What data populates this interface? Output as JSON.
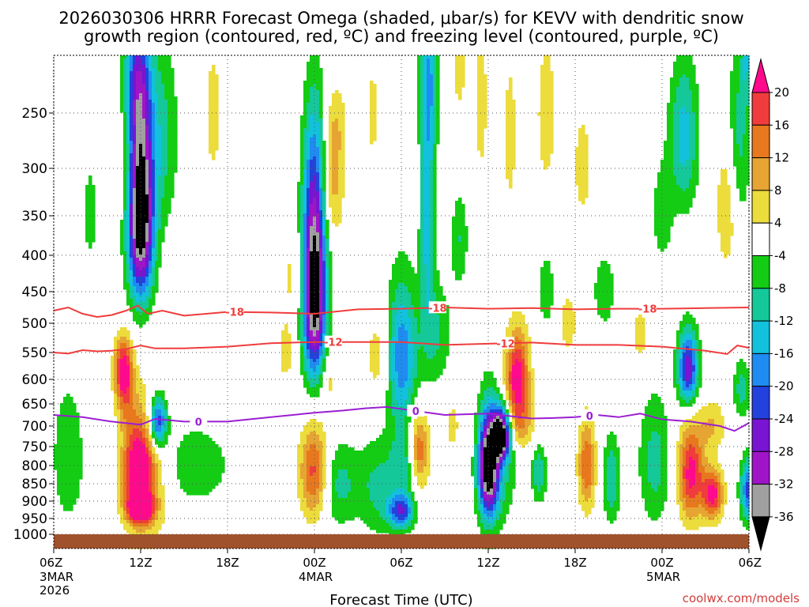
{
  "chart_data": {
    "type": "heatmap",
    "title_lines": [
      "2026030306 HRRR Forecast Omega (shaded, μbar/s) for KEVV with dendritic snow",
      "growth region (contoured, red, ºC) and freezing level (contoured, purple, ºC)"
    ],
    "xlabel": "Forecast Time (UTC)",
    "ylabel": "",
    "x_range_hours": [
      0,
      48
    ],
    "y_range_hpa": [
      1010,
      200
    ],
    "y_ticks": [
      {
        "p": 250,
        "label": "250"
      },
      {
        "p": 300,
        "label": "300"
      },
      {
        "p": 350,
        "label": "350"
      },
      {
        "p": 400,
        "label": "400"
      },
      {
        "p": 450,
        "label": "450"
      },
      {
        "p": 500,
        "label": "500"
      },
      {
        "p": 550,
        "label": "550"
      },
      {
        "p": 600,
        "label": "600"
      },
      {
        "p": 650,
        "label": "650"
      },
      {
        "p": 700,
        "label": "700"
      },
      {
        "p": 750,
        "label": "750"
      },
      {
        "p": 800,
        "label": "800"
      },
      {
        "p": 850,
        "label": "850"
      },
      {
        "p": 900,
        "label": "900"
      },
      {
        "p": 950,
        "label": "950"
      },
      {
        "p": 1000,
        "label": "1000"
      }
    ],
    "x_ticks": [
      {
        "h": 0,
        "label": "06Z",
        "sub": [
          "3MAR",
          "2026"
        ]
      },
      {
        "h": 6,
        "label": "12Z",
        "sub": []
      },
      {
        "h": 12,
        "label": "18Z",
        "sub": []
      },
      {
        "h": 18,
        "label": "00Z",
        "sub": [
          "4MAR"
        ]
      },
      {
        "h": 24,
        "label": "06Z",
        "sub": []
      },
      {
        "h": 30,
        "label": "12Z",
        "sub": []
      },
      {
        "h": 36,
        "label": "18Z",
        "sub": []
      },
      {
        "h": 42,
        "label": "00Z",
        "sub": [
          "5MAR"
        ]
      },
      {
        "h": 48,
        "label": "06Z",
        "sub": []
      }
    ],
    "grid": true,
    "colorbar": {
      "ticks": [
        "20",
        "16",
        "12",
        "8",
        "4",
        "-4",
        "-8",
        "-12",
        "-16",
        "-20",
        "-24",
        "-28",
        "-32",
        "-36"
      ],
      "bins": [
        {
          "min": 20,
          "max": 24,
          "color": "#ff0a8c"
        },
        {
          "min": 16,
          "max": 20,
          "color": "#f03c3c"
        },
        {
          "min": 12,
          "max": 16,
          "color": "#e8781e"
        },
        {
          "min": 8,
          "max": 12,
          "color": "#e6a532"
        },
        {
          "min": 4,
          "max": 8,
          "color": "#ecdc3c"
        },
        {
          "min": -4,
          "max": 4,
          "color": "#ffffff"
        },
        {
          "min": -8,
          "max": -4,
          "color": "#14cc14"
        },
        {
          "min": -12,
          "max": -8,
          "color": "#14c89a"
        },
        {
          "min": -16,
          "max": -12,
          "color": "#12c1dc"
        },
        {
          "min": -20,
          "max": -16,
          "color": "#1e8cf0"
        },
        {
          "min": -24,
          "max": -20,
          "color": "#2341dc"
        },
        {
          "min": -28,
          "max": -24,
          "color": "#7814d2"
        },
        {
          "min": -32,
          "max": -28,
          "color": "#a014c8"
        },
        {
          "min": -36,
          "max": -32,
          "color": "#a0a0a0"
        },
        {
          "min": -40,
          "max": -36,
          "color": "#000000"
        }
      ]
    },
    "omega_blobs": [
      {
        "h": 6.0,
        "p": 350,
        "wh": 0.9,
        "wp": 105,
        "v": -44
      },
      {
        "h": 5.8,
        "p": 220,
        "wh": 0.9,
        "wp": 60,
        "v": -20
      },
      {
        "h": 5.0,
        "p": 300,
        "wh": 0.6,
        "wp": 60,
        "v": 4
      },
      {
        "h": 7.5,
        "p": 270,
        "wh": 1.1,
        "wp": 90,
        "v": -9
      },
      {
        "h": 2.5,
        "p": 350,
        "wh": 0.5,
        "wp": 55,
        "v": -7
      },
      {
        "h": 1.0,
        "p": 780,
        "wh": 1.1,
        "wp": 180,
        "v": -8
      },
      {
        "h": 5.8,
        "p": 820,
        "wh": 1.0,
        "wp": 120,
        "v": 24
      },
      {
        "h": 6.0,
        "p": 920,
        "wh": 0.9,
        "wp": 40,
        "v": 22
      },
      {
        "h": 4.8,
        "p": 580,
        "wh": 0.6,
        "wp": 60,
        "v": 20
      },
      {
        "h": 6.5,
        "p": 820,
        "wh": 1.6,
        "wp": 200,
        "v": 10
      },
      {
        "h": 7.2,
        "p": 690,
        "wh": 0.6,
        "wp": 60,
        "v": -26
      },
      {
        "h": 9.5,
        "p": 800,
        "wh": 3.0,
        "wp": 120,
        "v": -7
      },
      {
        "h": 11.0,
        "p": 250,
        "wh": 0.8,
        "wp": 90,
        "v": 5
      },
      {
        "h": 5.0,
        "p": 640,
        "wh": 0.7,
        "wp": 80,
        "v": 8
      },
      {
        "h": 16.0,
        "p": 550,
        "wh": 0.6,
        "wp": 60,
        "v": 6
      },
      {
        "h": 18.0,
        "p": 450,
        "wh": 0.8,
        "wp": 140,
        "v": -42
      },
      {
        "h": 18.0,
        "p": 300,
        "wh": 0.8,
        "wp": 90,
        "v": -10
      },
      {
        "h": 18.0,
        "p": 820,
        "wh": 1.0,
        "wp": 130,
        "v": 20
      },
      {
        "h": 19.5,
        "p": 850,
        "wh": 1.6,
        "wp": 120,
        "v": -10
      },
      {
        "h": 19.2,
        "p": 320,
        "wh": 0.8,
        "wp": 60,
        "v": 10
      },
      {
        "h": 19.5,
        "p": 260,
        "wh": 0.8,
        "wp": 40,
        "v": 6
      },
      {
        "h": 16.5,
        "p": 430,
        "wh": 0.9,
        "wp": 60,
        "v": 5
      },
      {
        "h": 19.0,
        "p": 600,
        "wh": 0.6,
        "wp": 60,
        "v": 6
      },
      {
        "h": 22.5,
        "p": 560,
        "wh": 1.0,
        "wp": 100,
        "v": 7
      },
      {
        "h": 24.0,
        "p": 560,
        "wh": 1.1,
        "wp": 130,
        "v": -20
      },
      {
        "h": 24.2,
        "p": 800,
        "wh": 0.9,
        "wp": 90,
        "v": -10
      },
      {
        "h": 24.0,
        "p": 930,
        "wh": 0.9,
        "wp": 50,
        "v": -22
      },
      {
        "h": 22.5,
        "p": 860,
        "wh": 1.4,
        "wp": 140,
        "v": -9
      },
      {
        "h": 25.8,
        "p": 340,
        "wh": 0.5,
        "wp": 170,
        "v": -14
      },
      {
        "h": 26.0,
        "p": 220,
        "wh": 0.7,
        "wp": 60,
        "v": -10
      },
      {
        "h": 25.2,
        "p": 760,
        "wh": 0.7,
        "wp": 100,
        "v": 16
      },
      {
        "h": 22.0,
        "p": 250,
        "wh": 0.6,
        "wp": 60,
        "v": 5
      },
      {
        "h": 26.5,
        "p": 520,
        "wh": 1.0,
        "wp": 90,
        "v": -8
      },
      {
        "h": 27.5,
        "p": 700,
        "wh": 0.7,
        "wp": 90,
        "v": 5
      },
      {
        "h": 28.0,
        "p": 380,
        "wh": 0.6,
        "wp": 60,
        "v": -8
      },
      {
        "h": 28.0,
        "p": 200,
        "wh": 0.6,
        "wp": 60,
        "v": 6
      },
      {
        "h": 30.0,
        "p": 800,
        "wh": 0.7,
        "wp": 140,
        "v": -40
      },
      {
        "h": 30.9,
        "p": 720,
        "wh": 0.6,
        "wp": 60,
        "v": -40
      },
      {
        "h": 30.8,
        "p": 820,
        "wh": 1.2,
        "wp": 150,
        "v": -8
      },
      {
        "h": 29.5,
        "p": 240,
        "wh": 0.5,
        "wp": 80,
        "v": 6
      },
      {
        "h": 31.5,
        "p": 270,
        "wh": 0.5,
        "wp": 80,
        "v": 6
      },
      {
        "h": 32.0,
        "p": 600,
        "wh": 0.8,
        "wp": 90,
        "v": 24
      },
      {
        "h": 32.3,
        "p": 700,
        "wh": 1.0,
        "wp": 60,
        "v": 8
      },
      {
        "h": 33.5,
        "p": 820,
        "wh": 0.5,
        "wp": 80,
        "v": -12
      },
      {
        "h": 34.0,
        "p": 450,
        "wh": 0.6,
        "wp": 60,
        "v": -7
      },
      {
        "h": 34.0,
        "p": 250,
        "wh": 0.8,
        "wp": 80,
        "v": 6
      },
      {
        "h": 36.8,
        "p": 800,
        "wh": 0.6,
        "wp": 120,
        "v": 16
      },
      {
        "h": 35.5,
        "p": 500,
        "wh": 0.7,
        "wp": 60,
        "v": 6
      },
      {
        "h": 36.5,
        "p": 300,
        "wh": 0.7,
        "wp": 60,
        "v": 6
      },
      {
        "h": 38.5,
        "p": 840,
        "wh": 0.6,
        "wp": 120,
        "v": -12
      },
      {
        "h": 38.0,
        "p": 450,
        "wh": 0.8,
        "wp": 60,
        "v": -7
      },
      {
        "h": 41.5,
        "p": 790,
        "wh": 1.1,
        "wp": 170,
        "v": -10
      },
      {
        "h": 40.5,
        "p": 520,
        "wh": 0.6,
        "wp": 60,
        "v": 6
      },
      {
        "h": 42.0,
        "p": 350,
        "wh": 0.7,
        "wp": 60,
        "v": -7
      },
      {
        "h": 43.5,
        "p": 270,
        "wh": 1.0,
        "wp": 70,
        "v": -14
      },
      {
        "h": 43.8,
        "p": 580,
        "wh": 0.7,
        "wp": 70,
        "v": -28
      },
      {
        "h": 44.0,
        "p": 820,
        "wh": 0.9,
        "wp": 130,
        "v": 22
      },
      {
        "h": 45.5,
        "p": 880,
        "wh": 0.7,
        "wp": 70,
        "v": 22
      },
      {
        "h": 45.5,
        "p": 700,
        "wh": 0.9,
        "wp": 60,
        "v": 8
      },
      {
        "h": 46.5,
        "p": 340,
        "wh": 0.8,
        "wp": 80,
        "v": 8
      },
      {
        "h": 47.3,
        "p": 270,
        "wh": 0.8,
        "wp": 90,
        "v": -10
      },
      {
        "h": 47.5,
        "p": 620,
        "wh": 0.6,
        "wp": 60,
        "v": -10
      },
      {
        "h": 48.0,
        "p": 870,
        "wh": 0.6,
        "wp": 90,
        "v": -22
      },
      {
        "h": 47.8,
        "p": 200,
        "wh": 0.3,
        "wp": 40,
        "v": -10
      }
    ],
    "contour_minus18": {
      "label": "-18",
      "h": [
        0,
        1,
        2,
        3,
        4,
        5,
        5.8,
        6.5,
        7.5,
        9,
        12,
        15,
        18,
        21,
        24,
        27,
        30,
        33,
        36,
        39,
        42,
        45,
        48
      ],
      "p": [
        480,
        475,
        485,
        490,
        487,
        480,
        472,
        485,
        480,
        488,
        482,
        483,
        485,
        478,
        477,
        475,
        477,
        476,
        478,
        477,
        477,
        476,
        475
      ],
      "label_h": [
        12.5,
        26.5,
        41.0
      ]
    },
    "contour_minus12": {
      "label": "-12",
      "h": [
        0,
        1,
        2,
        3,
        4,
        5,
        6,
        7,
        9,
        12,
        15,
        18,
        21,
        24,
        27,
        30,
        33,
        36,
        39,
        42,
        45,
        46.5,
        47.2,
        48
      ],
      "p": [
        550,
        552,
        546,
        548,
        547,
        544,
        538,
        543,
        543,
        540,
        534,
        532,
        532,
        532,
        537,
        535,
        533,
        537,
        537,
        540,
        547,
        553,
        538,
        542
      ],
      "label_h": [
        19.3,
        31.2
      ]
    },
    "contour_freezing": {
      "label": "0",
      "h": [
        0,
        2,
        4,
        6,
        7,
        9,
        12,
        15,
        18,
        20,
        21.5,
        23,
        24.5,
        27,
        30,
        33,
        34.5,
        36,
        37.5,
        39,
        40.5,
        42,
        44,
        46,
        47,
        48
      ],
      "p": [
        675,
        680,
        690,
        697,
        684,
        690,
        690,
        680,
        670,
        665,
        660,
        657,
        664,
        675,
        672,
        683,
        682,
        680,
        675,
        680,
        672,
        685,
        690,
        700,
        712,
        693
      ],
      "label_h": [
        10.0,
        25.0,
        37.0
      ]
    },
    "terrain_top_p": 1000,
    "credit": "coolwx.com/models"
  }
}
